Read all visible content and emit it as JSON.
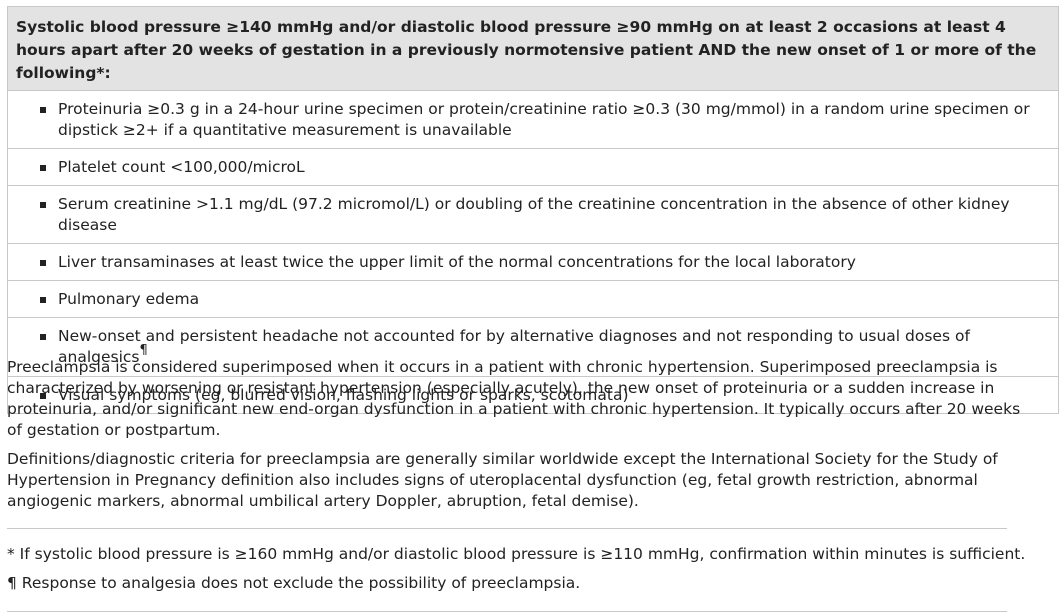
{
  "table": {
    "header": "Systolic blood pressure ≥140 mmHg and/or diastolic blood pressure ≥90 mmHg on at least 2 occasions at least 4 hours apart after 20 weeks of gestation in a previously normotensive patient AND the new onset of 1 or more of the following*:",
    "rows": [
      "Proteinuria ≥0.3 g in a 24-hour urine specimen or protein/creatinine ratio ≥0.3 (30 mg/mmol) in a random urine specimen or dipstick ≥2+ if a quantitative measurement is unavailable",
      "Platelet count <100,000/microL",
      "Serum creatinine >1.1 mg/dL (97.2 micromol/L) or doubling of the creatinine concentration in the absence of other kidney disease",
      "Liver transaminases at least twice the upper limit of the normal concentrations for the local laboratory",
      "Pulmonary edema",
      "New-onset and persistent headache not accounted for by alternative diagnoses and not responding to usual doses of analgesics",
      "Visual symptoms (eg, blurred vision, flashing lights or sparks, scotomata)"
    ],
    "headache_mark": "¶"
  },
  "paragraphs": [
    "Preeclampsia is considered superimposed when it occurs in a patient with chronic hypertension. Superimposed preeclampsia is characterized by worsening or resistant hypertension (especially acutely), the new onset of proteinuria or a sudden increase in proteinuria, and/or significant new end-organ dysfunction in a patient with chronic hypertension. It typically occurs after 20 weeks of gestation or postpartum.",
    "Definitions/diagnostic criteria for preeclampsia are generally similar worldwide except the International Society for the Study of Hypertension in Pregnancy definition also includes signs of uteroplacental dysfunction (eg, fetal growth restriction, abnormal angiogenic markers, abnormal umbilical artery Doppler, abruption, fetal demise)."
  ],
  "footnotes": [
    "* If systolic blood pressure is ≥160 mmHg and/or diastolic blood pressure is ≥110 mmHg, confirmation within minutes is sufficient.",
    "¶ Response to analgesia does not exclude the possibility of preeclampsia."
  ]
}
